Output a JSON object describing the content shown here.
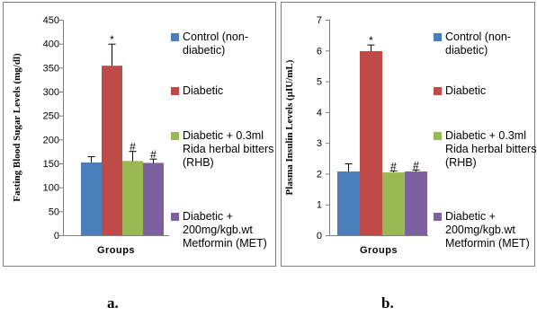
{
  "chart_data": [
    {
      "type": "bar",
      "panel_label": "a.",
      "ylabel": "Fasting Blood Sugar Levels (mg/dl)",
      "xlabel": "Groups",
      "ylim": [
        0,
        450
      ],
      "yticks": [
        "0",
        "50",
        "100",
        "150",
        "200",
        "250",
        "300",
        "350",
        "400",
        "450"
      ],
      "legend_position": "right",
      "series": [
        {
          "name_lines": [
            "Control (non-",
            "diabetic)"
          ],
          "color": "#4a7ebb",
          "value": 152,
          "error": 12,
          "annotation": ""
        },
        {
          "name_lines": [
            "Diabetic"
          ],
          "color": "#be4b48",
          "value": 354,
          "error": 45,
          "annotation": "*"
        },
        {
          "name_lines": [
            "Diabetic + 0.3ml",
            "Rida herbal bitters",
            "(RHB)"
          ],
          "color": "#98b954",
          "value": 155,
          "error": 20,
          "annotation": "#"
        },
        {
          "name_lines": [
            "Diabetic +",
            "200mg/kgb.wt",
            "Metformin (MET)"
          ],
          "color": "#7d60a0",
          "value": 151,
          "error": 8,
          "annotation": "#"
        }
      ]
    },
    {
      "type": "bar",
      "panel_label": "b.",
      "ylabel": "Plasma Insulin Levels (µIU/mL)",
      "xlabel": "Groups",
      "ylim": [
        0,
        7
      ],
      "yticks": [
        "0",
        "1",
        "2",
        "3",
        "4",
        "5",
        "6",
        "7"
      ],
      "legend_position": "right",
      "series": [
        {
          "name_lines": [
            "Control (non-",
            "diabetic)"
          ],
          "color": "#4a7ebb",
          "value": 2.07,
          "error": 0.25,
          "annotation": ""
        },
        {
          "name_lines": [
            "Diabetic"
          ],
          "color": "#be4b48",
          "value": 5.98,
          "error": 0.2,
          "annotation": "*"
        },
        {
          "name_lines": [
            "Diabetic + 0.3ml",
            "Rida herbal bitters",
            "(RHB)"
          ],
          "color": "#98b954",
          "value": 2.04,
          "error": 0.05,
          "annotation": "#"
        },
        {
          "name_lines": [
            "Diabetic +",
            "200mg/kgb.wt",
            "Metformin (MET)"
          ],
          "color": "#7d60a0",
          "value": 2.07,
          "error": 0.05,
          "annotation": "#"
        }
      ]
    }
  ]
}
